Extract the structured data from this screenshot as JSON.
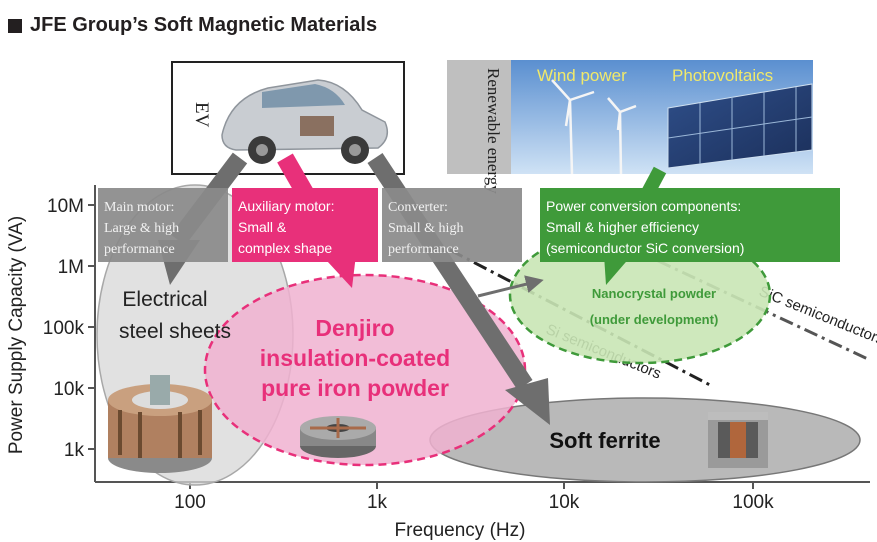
{
  "title": "JFE Group’s Soft Magnetic Materials",
  "axes": {
    "ylabel": "Power Supply Capacity (VA)",
    "xlabel": "Frequency (Hz)",
    "yticks": [
      "10M",
      "1M",
      "100k",
      "10k",
      "1k"
    ],
    "xticks": [
      "100",
      "1k",
      "10k",
      "100k"
    ]
  },
  "ev_label": "EV",
  "renewable_label": "Renewable energy",
  "wind_label": "Wind power",
  "pv_label": "Photovoltaics",
  "boxes": {
    "main_motor": "Main motor: Large & high performance",
    "aux_motor": "Auxiliary motor: Small & complex shape",
    "converter": "Converter: Small & high performance",
    "power_conv": "Power conversion components: Small & higher efficiency (semiconductor SiC conversion)"
  },
  "regions": {
    "steel_line1": "Electrical",
    "steel_line2": "steel sheets",
    "denjiro_line1": "Denjiro",
    "denjiro_line2": "insulation-coated",
    "denjiro_line3": "pure iron powder",
    "ferrite": "Soft ferrite",
    "nano_line1": "Nanocrystal powder",
    "nano_line2": "(under development)"
  },
  "lines": {
    "si": "Si semiconductors",
    "sic": "SiC semiconductors"
  },
  "colors": {
    "gray_box": "#8a8a8a",
    "pink_box": "#e8307a",
    "green_box": "#3f9a3a",
    "steel_fill": "#d7d7d7",
    "denjiro_fill": "#f0b2d0",
    "ferrite_fill": "#b9b9b9",
    "nano_fill": "#c9e6b5",
    "arrow_gray": "#6e6e6e",
    "arrow_pink": "#e8307a",
    "arrow_green": "#3f9a3a"
  }
}
